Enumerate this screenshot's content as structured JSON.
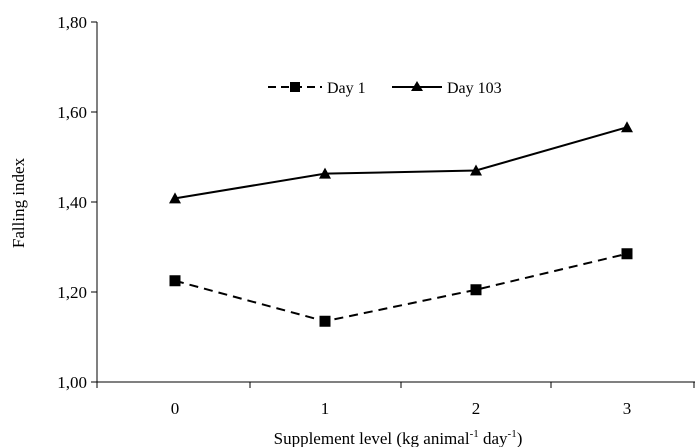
{
  "chart_data": {
    "type": "line",
    "xlabel_main": "Supplement level (kg animal",
    "xlabel_sup1": "-1",
    "xlabel_mid": " day",
    "xlabel_sup2": "-1",
    "xlabel_end": ")",
    "ylabel": "Falling index",
    "x": [
      0,
      1,
      2,
      3
    ],
    "x_tick_labels": [
      "0",
      "1",
      "2",
      "3"
    ],
    "ylim": [
      1.0,
      1.8
    ],
    "y_ticks": [
      1.0,
      1.2,
      1.4,
      1.6,
      1.8
    ],
    "y_tick_labels": [
      "1,00",
      "1,20",
      "1,40",
      "1,60",
      "1,80"
    ],
    "grid": false,
    "legend_position": "top-center",
    "series": [
      {
        "name": "Day 1",
        "values": [
          1.225,
          1.135,
          1.205,
          1.285
        ],
        "marker": "square",
        "line": "dashed",
        "color": "#000000"
      },
      {
        "name": "Day 103",
        "values": [
          1.408,
          1.463,
          1.47,
          1.566
        ],
        "marker": "triangle",
        "line": "solid",
        "color": "#000000"
      }
    ]
  }
}
